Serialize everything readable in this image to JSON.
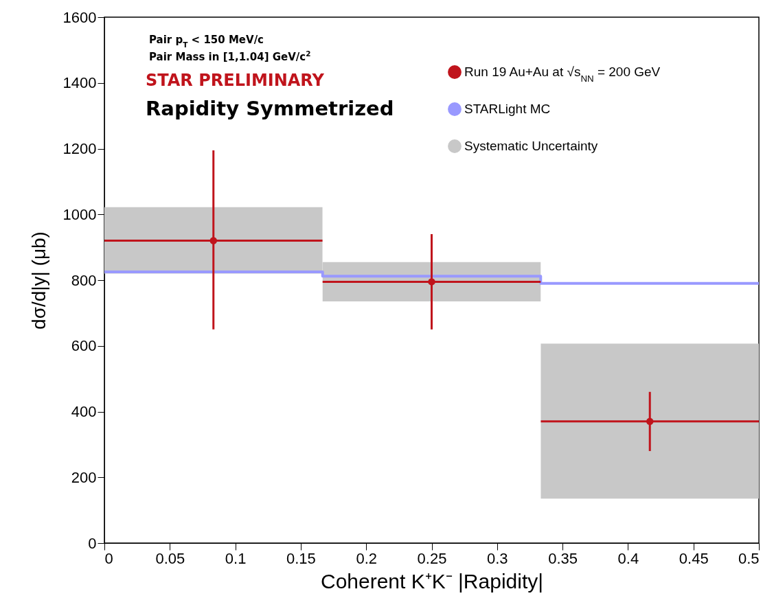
{
  "chart_data": {
    "type": "scatter",
    "xlabel": "Coherent K⁺K⁻ |Rapidity|",
    "ylabel": "dσ/d|y|  (μb)",
    "xlim": [
      0,
      0.5
    ],
    "xticks": [
      0,
      0.05,
      0.1,
      0.15,
      0.2,
      0.25,
      0.3,
      0.35,
      0.4,
      0.45,
      0.5
    ],
    "ylim": [
      0,
      1600
    ],
    "yticks": [
      0,
      200,
      400,
      600,
      800,
      1000,
      1200,
      1400,
      1600
    ],
    "grid": false,
    "legend": "top right",
    "line_style": "solid",
    "annotations": [
      "Pair p$_{T}$ < 150 MeV/c",
      "Pair Mass in [1,1.04] GeV/c$^{2}$",
      "STAR  PRELIMINARY",
      "Rapidity Symmetrized"
    ],
    "series": [
      {
        "name": "Systematic Uncertainty",
        "type": "bar",
        "color": "#c8c8c8",
        "x": [
          0.0833,
          0.25,
          0.4167
        ],
        "xerrors": [
          0.0833,
          0.0833,
          0.0833
        ],
        "base": [
          820,
          735,
          135
        ],
        "values": [
          202,
          120,
          472
        ]
      },
      {
        "name": "STARLight MC",
        "type": "step",
        "color": "#9999ff",
        "x": [
          0,
          0.1667,
          0.3333,
          0.5
        ],
        "values": [
          825,
          812,
          790,
          790
        ]
      },
      {
        "name": "Run 19 Au+Au at √s$_{NN}$ = 200 GeV",
        "marker": "circle",
        "color": "#c0141c",
        "x": [
          0.0833,
          0.25,
          0.4167
        ],
        "values": [
          920,
          795,
          370
        ],
        "errors": [
          [
            650,
            1195
          ],
          [
            650,
            940
          ],
          [
            280,
            460
          ]
        ],
        "xerrors": [
          0.0833,
          0.0833,
          0.0833
        ]
      }
    ]
  }
}
